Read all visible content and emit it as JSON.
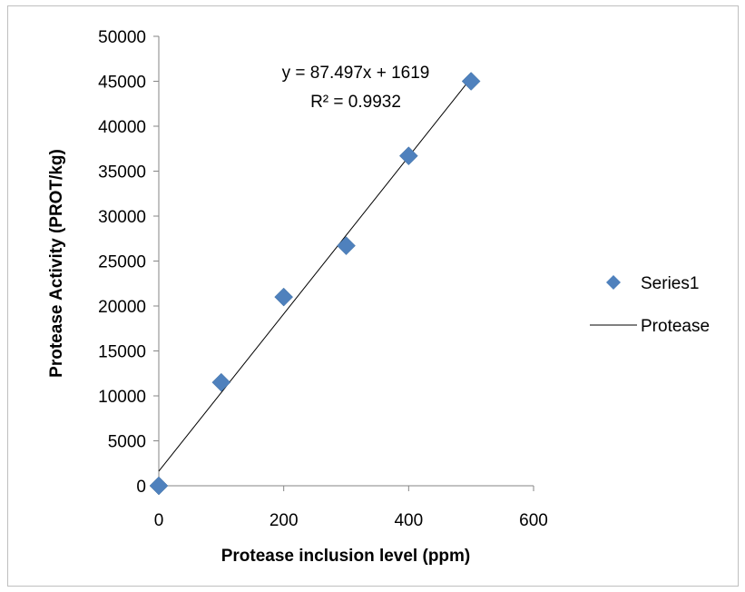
{
  "chart_data": {
    "type": "scatter",
    "title": "",
    "xlabel": "Protease inclusion level (ppm)",
    "ylabel": "Protease Activity (PROT/kg)",
    "xlim": [
      0,
      600
    ],
    "ylim": [
      0,
      50000
    ],
    "x_ticks": [
      "0",
      "200",
      "400",
      "600"
    ],
    "y_ticks": [
      "0",
      "5000",
      "10000",
      "15000",
      "20000",
      "25000",
      "30000",
      "35000",
      "40000",
      "45000",
      "50000"
    ],
    "series": [
      {
        "name": "Series1",
        "marker": "diamond",
        "color": "#4f81bd",
        "x": [
          0,
          100,
          200,
          300,
          400,
          500
        ],
        "y": [
          0,
          11500,
          21000,
          26700,
          36700,
          45000
        ]
      }
    ],
    "trendline": {
      "name": "Protease",
      "color": "#000000",
      "slope": 87.497,
      "intercept": 1619,
      "x_range": [
        0,
        500
      ],
      "equation": "y = 87.497x + 1619",
      "r2_label": "R² = 0.9932"
    },
    "grid": false,
    "legend": {
      "placement": "right",
      "entries": [
        "Series1",
        "Protease"
      ]
    }
  }
}
